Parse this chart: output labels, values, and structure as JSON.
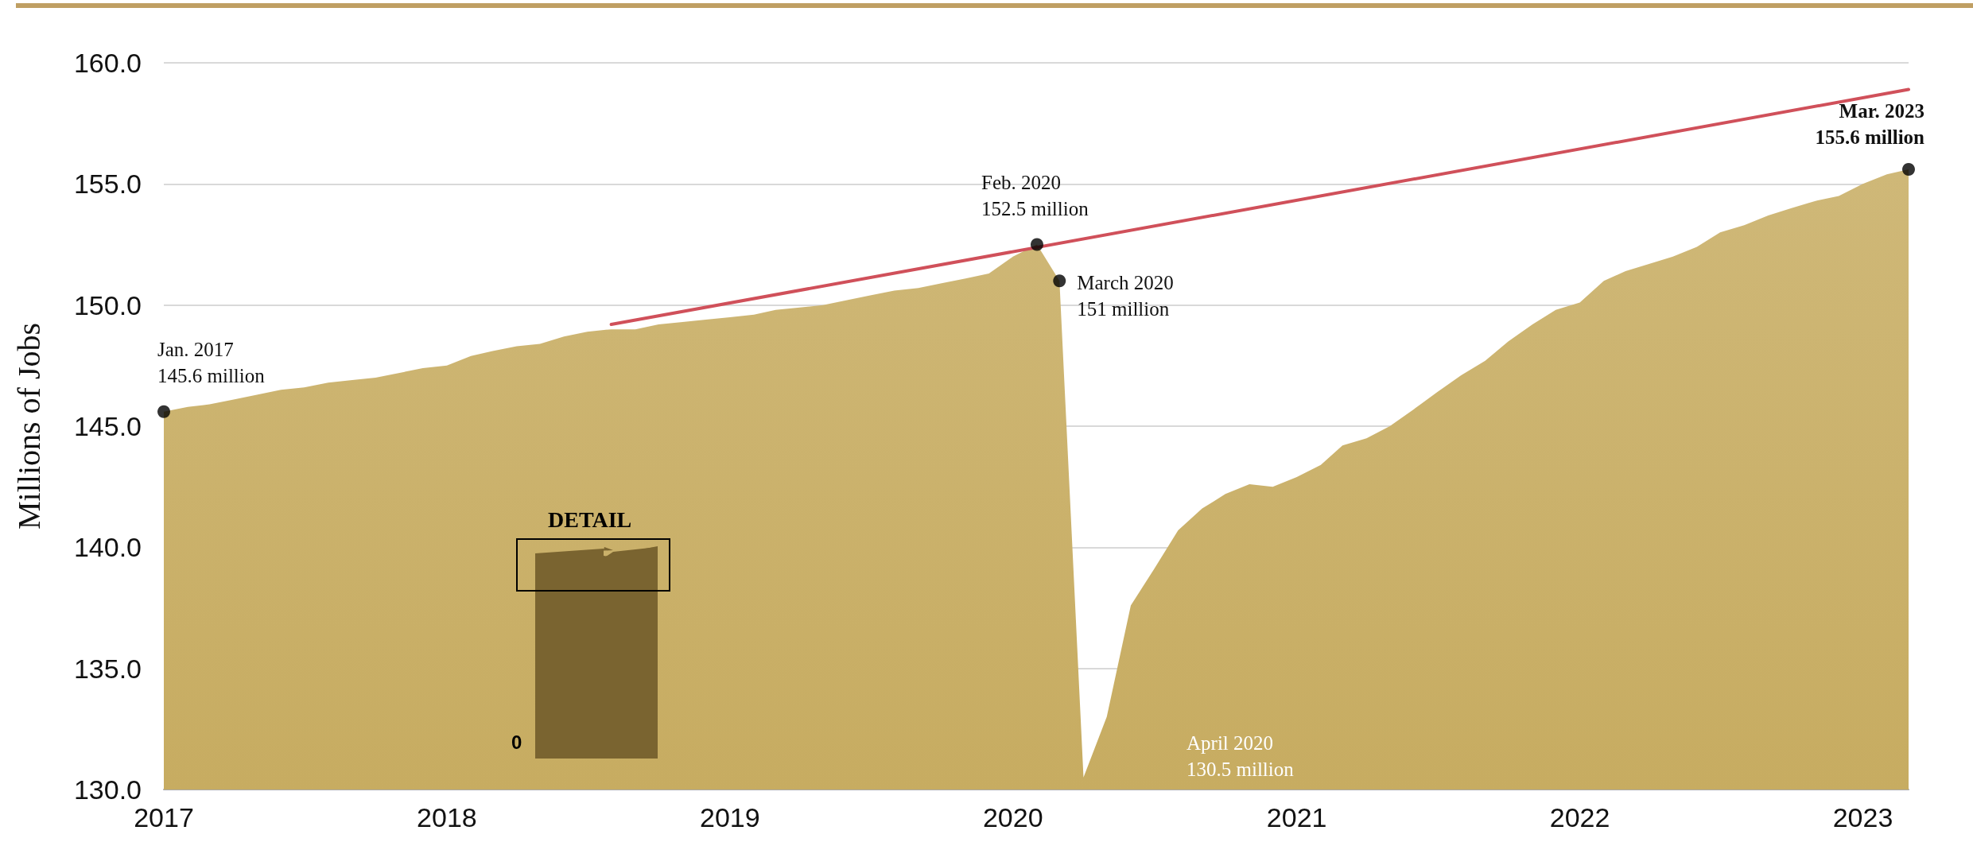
{
  "chart_data": {
    "type": "area",
    "ylabel": "Millions of Jobs",
    "x": [
      "2017-01",
      "2017-02",
      "2017-03",
      "2017-04",
      "2017-05",
      "2017-06",
      "2017-07",
      "2017-08",
      "2017-09",
      "2017-10",
      "2017-11",
      "2017-12",
      "2018-01",
      "2018-02",
      "2018-03",
      "2018-04",
      "2018-05",
      "2018-06",
      "2018-07",
      "2018-08",
      "2018-09",
      "2018-10",
      "2018-11",
      "2018-12",
      "2019-01",
      "2019-02",
      "2019-03",
      "2019-04",
      "2019-05",
      "2019-06",
      "2019-07",
      "2019-08",
      "2019-09",
      "2019-10",
      "2019-11",
      "2019-12",
      "2020-01",
      "2020-02",
      "2020-03",
      "2020-04",
      "2020-05",
      "2020-06",
      "2020-07",
      "2020-08",
      "2020-09",
      "2020-10",
      "2020-11",
      "2020-12",
      "2021-01",
      "2021-02",
      "2021-03",
      "2021-04",
      "2021-05",
      "2021-06",
      "2021-07",
      "2021-08",
      "2021-09",
      "2021-10",
      "2021-11",
      "2021-12",
      "2022-01",
      "2022-02",
      "2022-03",
      "2022-04",
      "2022-05",
      "2022-06",
      "2022-07",
      "2022-08",
      "2022-09",
      "2022-10",
      "2022-11",
      "2022-12",
      "2023-01",
      "2023-02",
      "2023-03"
    ],
    "series": [
      {
        "color": "#cfb878",
        "marker": "none",
        "values": [
          145.6,
          145.8,
          145.9,
          146.1,
          146.3,
          146.5,
          146.6,
          146.8,
          146.9,
          147.0,
          147.2,
          147.4,
          147.5,
          147.9,
          148.1,
          148.3,
          148.4,
          148.7,
          148.9,
          149.0,
          149.0,
          149.2,
          149.3,
          149.4,
          149.5,
          149.6,
          149.8,
          149.9,
          150.0,
          150.2,
          150.4,
          150.6,
          150.7,
          150.9,
          151.1,
          151.3,
          152.0,
          152.5,
          151.0,
          130.5,
          133.0,
          137.6,
          139.1,
          140.7,
          141.6,
          142.2,
          142.6,
          142.5,
          142.9,
          143.4,
          144.2,
          144.5,
          145.0,
          145.7,
          146.4,
          147.1,
          147.7,
          148.5,
          149.2,
          149.8,
          150.1,
          151.0,
          151.4,
          151.7,
          152.0,
          152.4,
          153.0,
          153.3,
          153.7,
          154.0,
          154.3,
          154.5,
          155.0,
          155.4,
          155.6
        ]
      },
      {
        "type": "line",
        "color": "#d0505a",
        "x": [
          "2018-08",
          "2023-03"
        ],
        "values": [
          149.2,
          158.9
        ]
      },
      {
        "type": "scatter",
        "color": "#000000",
        "marker": "circle",
        "x": [
          "2017-01",
          "2020-02",
          "2020-03",
          "2023-03"
        ],
        "values": [
          145.6,
          152.5,
          151.0,
          155.6
        ]
      }
    ],
    "xlim": [
      "2017-01",
      "2023-03"
    ],
    "xticks": [
      {
        "value": "2017-01",
        "label": "2017"
      },
      {
        "value": "2018-01",
        "label": "2018"
      },
      {
        "value": "2019-01",
        "label": "2019"
      },
      {
        "value": "2020-01",
        "label": "2020"
      },
      {
        "value": "2021-01",
        "label": "2021"
      },
      {
        "value": "2022-01",
        "label": "2022"
      },
      {
        "value": "2023-01",
        "label": "2023"
      }
    ],
    "ylim": [
      130,
      160
    ],
    "yticks": [
      {
        "value": 130,
        "label": "130.0"
      },
      {
        "value": 135,
        "label": "135.0"
      },
      {
        "value": 140,
        "label": "140.0"
      },
      {
        "value": 145,
        "label": "145.0"
      },
      {
        "value": 150,
        "label": "150.0"
      },
      {
        "value": 155,
        "label": "155.0"
      },
      {
        "value": 160,
        "label": "160.0"
      }
    ],
    "grid": "y",
    "annotations": [
      {
        "text": "Jan. 2017\n145.6 million",
        "x": "2017-01",
        "y": 145.6
      },
      {
        "text": "Feb. 2020\n152.5 million",
        "x": "2020-02",
        "y": 152.5
      },
      {
        "text": "March 2020\n151 million",
        "x": "2020-03",
        "y": 151.0
      },
      {
        "text": "Mar. 2023\n155.6 million",
        "x": "2023-03",
        "y": 155.6
      },
      "April 2020\n130.5 million",
      "DETAIL",
      "0"
    ]
  }
}
